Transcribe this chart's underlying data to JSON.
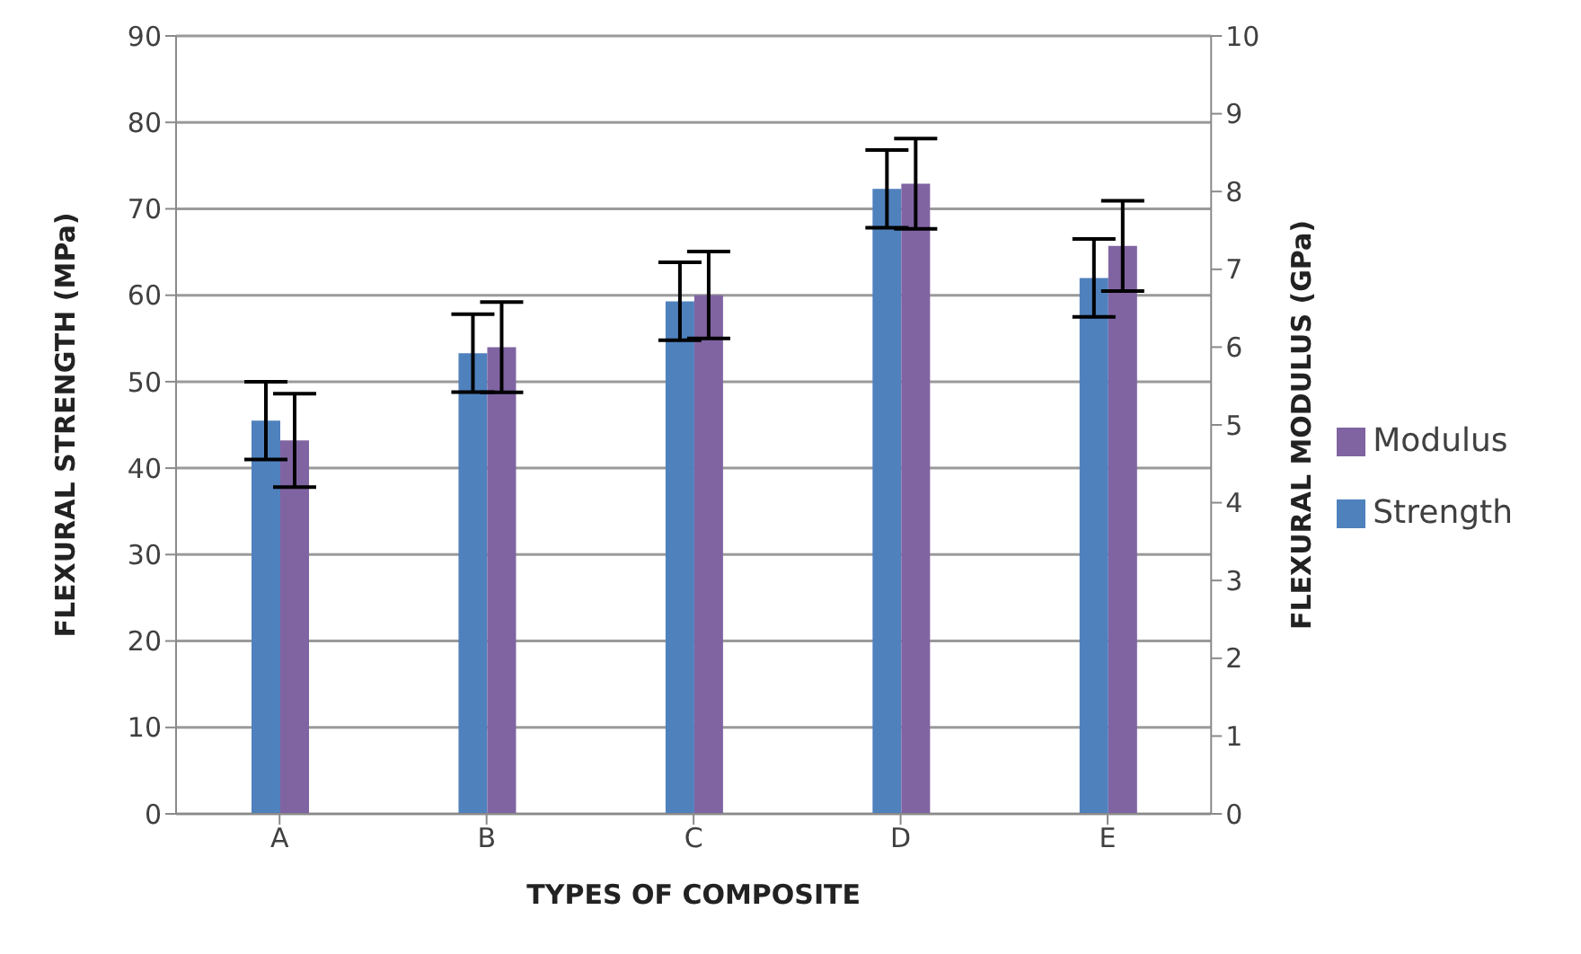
{
  "chart_data": {
    "type": "bar",
    "xlabel": "TYPES OF COMPOSITE",
    "ylabel": "FLEXURAL STRENGTH  (MPa)",
    "y2label": "FLEXURAL MODULUS  (GPa)",
    "categories": [
      "A",
      "B",
      "C",
      "D",
      "E"
    ],
    "series": [
      {
        "name": "Strength",
        "color": "#4f81bd",
        "values": [
          45.5,
          53.3,
          59.3,
          72.3,
          62
        ],
        "errors": [
          4.5,
          4.5,
          4.5,
          4.5,
          4.5
        ]
      },
      {
        "name": "Modulus",
        "color": "#8064a2",
        "axis": "y2",
        "values": [
          4.8,
          6.0,
          6.67,
          8.1,
          7.3
        ],
        "errors": [
          0.6,
          0.58,
          0.56,
          0.58,
          0.58
        ]
      }
    ],
    "ylim": [
      0,
      90
    ],
    "yticks": [
      0,
      10,
      20,
      30,
      40,
      50,
      60,
      70,
      80,
      90
    ],
    "y2lim": [
      0,
      10
    ],
    "y2ticks": [
      0,
      1,
      2,
      3,
      4,
      5,
      6,
      7,
      8,
      9,
      10
    ],
    "grid": "y",
    "legend": "right"
  }
}
